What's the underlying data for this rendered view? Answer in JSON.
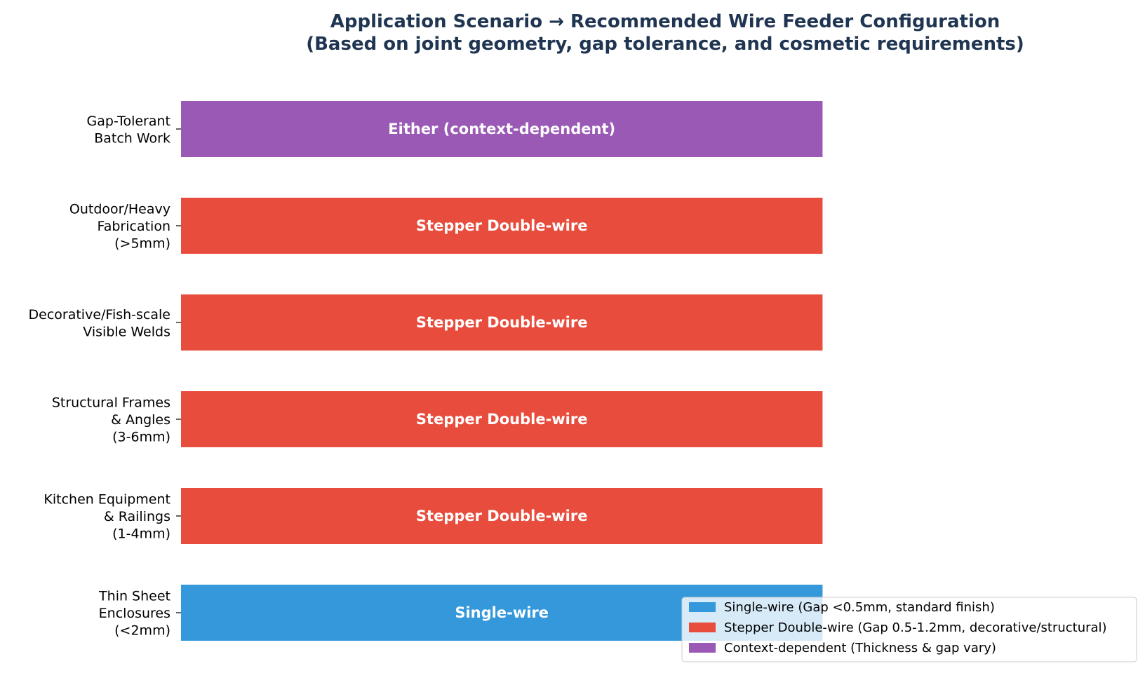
{
  "chart_data": {
    "type": "bar",
    "orientation": "horizontal",
    "title": "Application Scenario → Recommended Wire Feeder Configuration",
    "subtitle": "(Based on joint geometry, gap tolerance, and cosmetic requirements)",
    "xlabel": "",
    "ylabel": "",
    "xlim": [
      0,
      1.25
    ],
    "grid": false,
    "legend_position": "bottom-right",
    "colors": {
      "title": "#1f3552",
      "single": "#3498db",
      "stepper": "#e74c3c",
      "either": "#9b59b6"
    },
    "categories": [
      [
        "Thin Sheet",
        "Enclosures",
        "(<2mm)"
      ],
      [
        "Kitchen Equipment",
        "& Railings",
        "(1-4mm)"
      ],
      [
        "Structural Frames",
        "& Angles",
        "(3-6mm)"
      ],
      [
        "Decorative/Fish-scale",
        "Visible Welds"
      ],
      [
        "Outdoor/Heavy",
        "Fabrication",
        "(>5mm)"
      ],
      [
        "Gap-Tolerant",
        "Batch Work"
      ]
    ],
    "values": [
      1,
      1,
      1,
      1,
      1,
      1
    ],
    "bar_kinds": [
      "single",
      "stepper",
      "stepper",
      "stepper",
      "stepper",
      "either"
    ],
    "bar_labels": [
      "Single-wire",
      "Stepper Double-wire",
      "Stepper Double-wire",
      "Stepper Double-wire",
      "Stepper Double-wire",
      "Either (context-dependent)"
    ],
    "legend": [
      {
        "kind": "single",
        "label": "Single-wire (Gap <0.5mm, standard finish)"
      },
      {
        "kind": "stepper",
        "label": "Stepper Double-wire (Gap 0.5-1.2mm, decorative/structural)"
      },
      {
        "kind": "either",
        "label": "Context-dependent (Thickness & gap vary)"
      }
    ]
  }
}
